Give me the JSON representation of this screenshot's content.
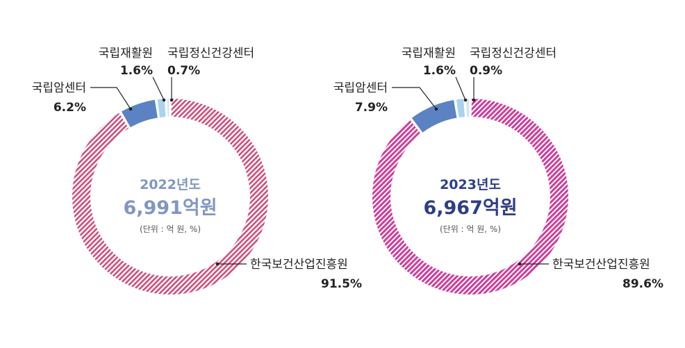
{
  "colors": {
    "slice_main_2022": "#d14d78",
    "slice_main_2023": "#d13c9a",
    "slice_cancer": "#5b82c3",
    "slice_rehab": "#a9d3ef",
    "slice_mental": "#cfe6f6",
    "year_2022_text": "#8196c2",
    "year_2023_text": "#2d3e86",
    "label_text": "#222222"
  },
  "chart_data": [
    {
      "type": "pie",
      "center_year": "2022년도",
      "center_total": "6,991억원",
      "center_unit": "(단위 : 억 원, %)",
      "slices": [
        {
          "label": "한국보건산업진흥원",
          "pct": 91.5,
          "pct_text": "91.5%"
        },
        {
          "label": "국립암센터",
          "pct": 6.2,
          "pct_text": "6.2%"
        },
        {
          "label": "국립재활원",
          "pct": 1.6,
          "pct_text": "1.6%"
        },
        {
          "label": "국립정신건강센터",
          "pct": 0.7,
          "pct_text": "0.7%"
        }
      ]
    },
    {
      "type": "pie",
      "center_year": "2023년도",
      "center_total": "6,967억원",
      "center_unit": "(단위 : 억 원, %)",
      "slices": [
        {
          "label": "한국보건산업진흥원",
          "pct": 89.6,
          "pct_text": "89.6%"
        },
        {
          "label": "국립암센터",
          "pct": 7.9,
          "pct_text": "7.9%"
        },
        {
          "label": "국립재활원",
          "pct": 1.6,
          "pct_text": "1.6%"
        },
        {
          "label": "국립정신건강센터",
          "pct": 0.9,
          "pct_text": "0.9%"
        }
      ]
    }
  ]
}
